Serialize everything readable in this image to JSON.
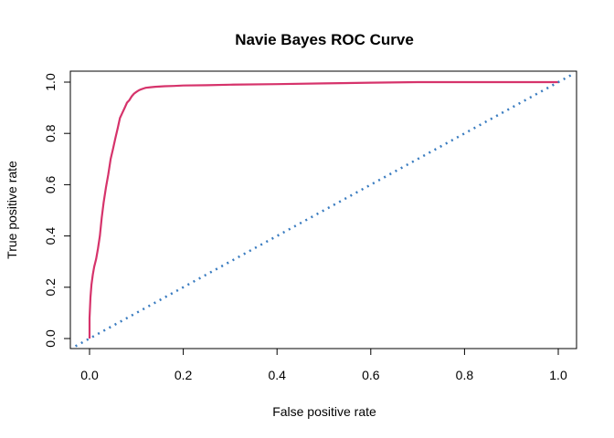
{
  "chart_data": {
    "type": "line",
    "title": "Navie Bayes ROC Curve",
    "xlabel": "False positive rate",
    "ylabel": "True positive rate",
    "xlim": [
      0,
      1
    ],
    "ylim": [
      0,
      1
    ],
    "x_ticks": [
      "0.0",
      "0.2",
      "0.4",
      "0.6",
      "0.8",
      "1.0"
    ],
    "y_ticks": [
      "0.0",
      "0.2",
      "0.4",
      "0.6",
      "0.8",
      "1.0"
    ],
    "grid": false,
    "legend": "none",
    "series": [
      {
        "color": "#D6336B",
        "style": "solid",
        "x": [
          0.0,
          0.0,
          0.002,
          0.004,
          0.007,
          0.01,
          0.014,
          0.018,
          0.022,
          0.026,
          0.03,
          0.035,
          0.04,
          0.045,
          0.05,
          0.055,
          0.06,
          0.065,
          0.07,
          0.075,
          0.08,
          0.085,
          0.09,
          0.095,
          0.1,
          0.105,
          0.11,
          0.115,
          0.12,
          0.13,
          0.14,
          0.16,
          0.18,
          0.2,
          0.25,
          0.3,
          0.4,
          0.5,
          0.6,
          0.7,
          0.8,
          0.9,
          1.0
        ],
        "y": [
          0.0,
          0.08,
          0.16,
          0.21,
          0.25,
          0.28,
          0.31,
          0.35,
          0.4,
          0.47,
          0.53,
          0.59,
          0.64,
          0.7,
          0.74,
          0.78,
          0.82,
          0.86,
          0.88,
          0.9,
          0.92,
          0.93,
          0.945,
          0.955,
          0.962,
          0.968,
          0.972,
          0.975,
          0.978,
          0.98,
          0.982,
          0.984,
          0.985,
          0.987,
          0.988,
          0.99,
          0.992,
          0.995,
          0.998,
          1.0,
          1.0,
          1.0,
          1.0
        ]
      },
      {
        "color": "#3A7CC0",
        "style": "dotted",
        "x": [
          -0.03,
          1.03
        ],
        "y": [
          -0.03,
          1.03
        ]
      }
    ]
  }
}
